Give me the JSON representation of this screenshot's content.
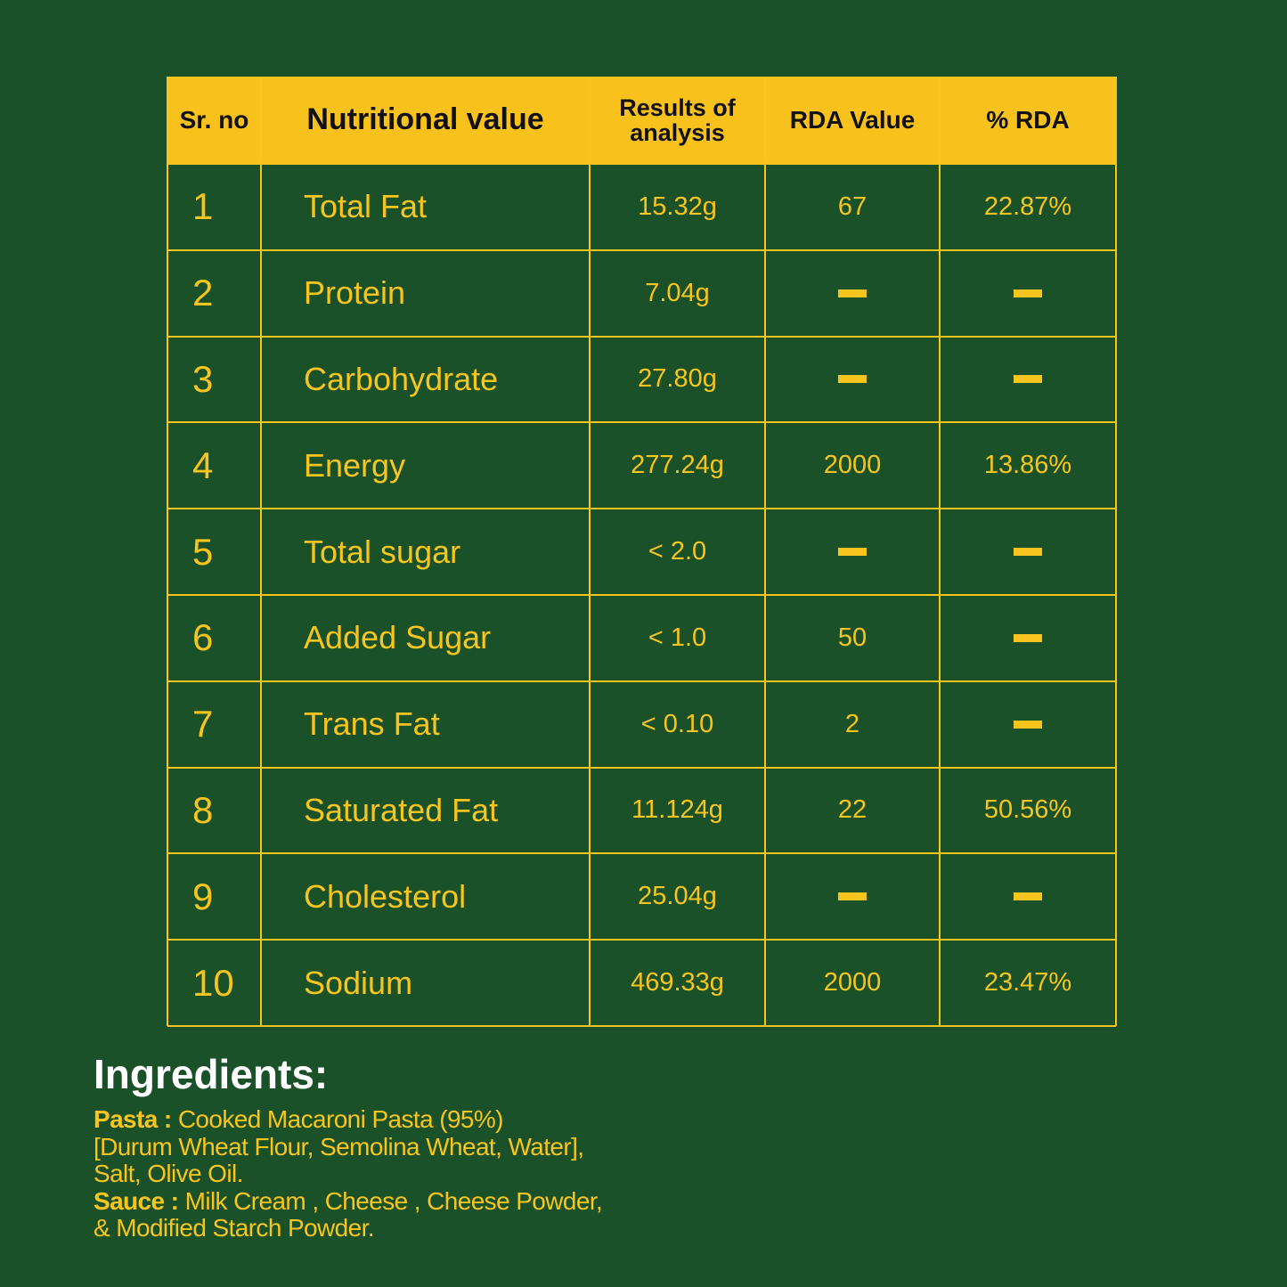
{
  "table": {
    "headers": [
      "Sr. no",
      "Nutritional value",
      "Results of analysis",
      "RDA Value",
      "% RDA"
    ],
    "rows": [
      [
        "1",
        "Total Fat",
        "15.32g",
        "67",
        "22.87%"
      ],
      [
        "2",
        "Protein",
        "7.04g",
        null,
        null
      ],
      [
        "3",
        "Carbohydrate",
        "27.80g",
        null,
        null
      ],
      [
        "4",
        "Energy",
        "277.24g",
        "2000",
        "13.86%"
      ],
      [
        "5",
        "Total sugar",
        "< 2.0",
        null,
        null
      ],
      [
        "6",
        "Added Sugar",
        "< 1.0",
        "50",
        null
      ],
      [
        "7",
        "Trans Fat",
        "< 0.10",
        "2",
        null
      ],
      [
        "8",
        "Saturated Fat",
        "11.124g",
        "22",
        "50.56%"
      ],
      [
        "9",
        "Cholesterol",
        "25.04g",
        null,
        null
      ],
      [
        "10",
        "Sodium",
        "469.33g",
        "2000",
        "23.47%"
      ]
    ]
  },
  "ingredients": {
    "title": "Ingredients:",
    "items": [
      {
        "label": "Pasta :",
        "lines": [
          "Cooked Macaroni Pasta (95%)",
          "[Durum Wheat Flour, Semolina Wheat, Water],",
          "Salt, Olive Oil."
        ]
      },
      {
        "label": "Sauce :",
        "lines": [
          "Milk Cream , Cheese , Cheese Powder,",
          "& Modified Starch Powder."
        ]
      }
    ]
  }
}
